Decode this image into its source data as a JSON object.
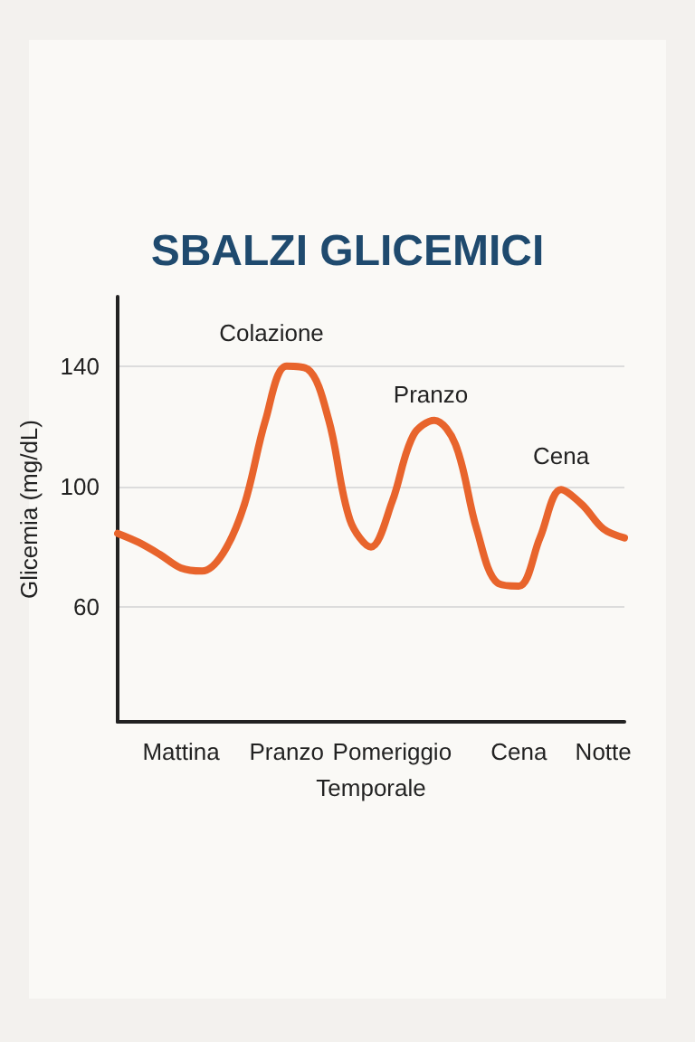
{
  "chart_data": {
    "type": "line",
    "title": "SBALZI GLICEMICI",
    "xlabel": "Temporale",
    "ylabel": "Glicemia (mg/dL)",
    "categories": [
      null,
      null,
      null,
      "Mattina",
      null,
      null,
      null,
      null,
      "Pranzo",
      null,
      null,
      null,
      null,
      "Pomeriggio",
      null,
      null,
      null,
      null,
      null,
      "Cena",
      null,
      null,
      null,
      "Notte",
      null
    ],
    "values": [
      84.5,
      81.5,
      77.5,
      73,
      72,
      78,
      94,
      122,
      140,
      139,
      122,
      89,
      80,
      95,
      117,
      122,
      114,
      86,
      68,
      67,
      83,
      99,
      94,
      86,
      83
    ],
    "color": "#e8642c",
    "marker": "none",
    "line_style": "solid",
    "ylim": [
      22,
      163
    ],
    "yticks": [
      60,
      100,
      140
    ],
    "grid": "y",
    "annotations": [
      "Colazione",
      "Pranzo",
      "Cena"
    ]
  }
}
